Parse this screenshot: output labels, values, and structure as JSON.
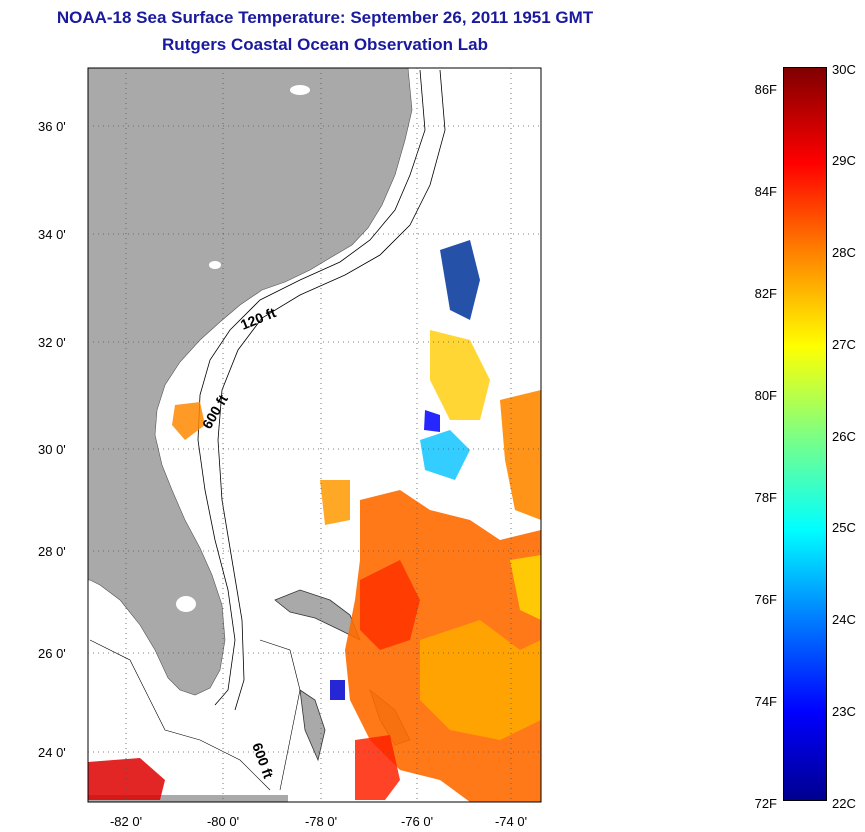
{
  "header": {
    "title": "NOAA-18 Sea Surface Temperature:  September 26, 2011 1951 GMT",
    "subtitle": "Rutgers Coastal Ocean Observation Lab"
  },
  "map": {
    "lat_ticks": [
      "36 0'",
      "34 0'",
      "32 0'",
      "30 0'",
      "28 0'",
      "26 0'",
      "24 0'"
    ],
    "lon_ticks": [
      "-82 0'",
      "-80 0'",
      "-78 0'",
      "-76 0'",
      "-74 0'"
    ],
    "contour_labels": {
      "c120": "120 ft",
      "c600a": "600 ft",
      "c600b": "600 ft"
    },
    "land_color": "#a9a9a9"
  },
  "colorbar": {
    "fahrenheit": [
      "86F",
      "84F",
      "82F",
      "80F",
      "78F",
      "76F",
      "74F",
      "72F"
    ],
    "celsius": [
      "30C",
      "29C",
      "28C",
      "27C",
      "26C",
      "25C",
      "24C",
      "23C",
      "22C"
    ]
  }
}
